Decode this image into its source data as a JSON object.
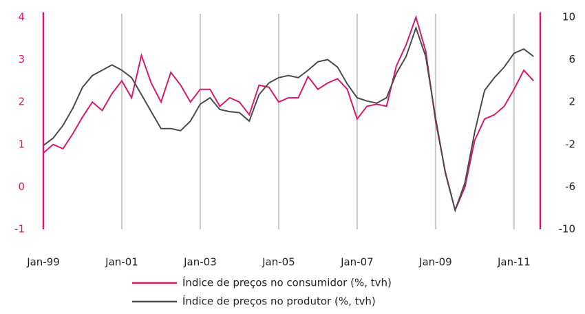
{
  "chart_data": {
    "type": "line",
    "x": [
      1999,
      1999.25,
      1999.5,
      1999.75,
      2000,
      2000.25,
      2000.5,
      2000.75,
      2001,
      2001.25,
      2001.5,
      2001.75,
      2002,
      2002.25,
      2002.5,
      2002.75,
      2003,
      2003.25,
      2003.5,
      2003.75,
      2004,
      2004.25,
      2004.5,
      2004.75,
      2005,
      2005.25,
      2005.5,
      2005.75,
      2006,
      2006.25,
      2006.5,
      2006.75,
      2007,
      2007.25,
      2007.5,
      2007.75,
      2008,
      2008.25,
      2008.5,
      2008.75,
      2009,
      2009.25,
      2009.5,
      2009.75,
      2010,
      2010.25,
      2010.5,
      2010.75,
      2011,
      2011.25,
      2011.5
    ],
    "xlim": [
      1999,
      2011.67
    ],
    "xticks": [
      {
        "value": 1999,
        "label": "Jan-99"
      },
      {
        "value": 2001,
        "label": "Jan-01"
      },
      {
        "value": 2003,
        "label": "Jan-03"
      },
      {
        "value": 2005,
        "label": "Jan-05"
      },
      {
        "value": 2007,
        "label": "Jan-07"
      },
      {
        "value": 2009,
        "label": "Jan-09"
      },
      {
        "value": 2011,
        "label": "Jan-11"
      }
    ],
    "ylim": [
      -1,
      4
    ],
    "yticks": [
      -1,
      0,
      1,
      2,
      3,
      4
    ],
    "y2lim": [
      -10,
      10
    ],
    "y2ticks": [
      -10,
      -6,
      -2,
      2,
      6,
      10
    ],
    "grid": true,
    "series": [
      {
        "name": "Índice de preços no consumidor (%, tvh)",
        "color": "#d6196e",
        "values": [
          0.8,
          1.0,
          0.9,
          1.25,
          1.65,
          2.0,
          1.8,
          2.2,
          2.5,
          2.1,
          3.1,
          2.45,
          2.0,
          2.7,
          2.4,
          2.0,
          2.3,
          2.3,
          1.9,
          2.1,
          2.0,
          1.7,
          2.4,
          2.35,
          2.0,
          2.1,
          2.1,
          2.6,
          2.3,
          2.45,
          2.55,
          2.3,
          1.6,
          1.9,
          1.95,
          1.9,
          2.85,
          3.35,
          4.0,
          3.2,
          1.55,
          0.35,
          -0.55,
          0.0,
          1.1,
          1.6,
          1.7,
          1.9,
          2.3,
          2.75,
          2.5
        ]
      },
      {
        "name": "Índice de preços no produtor (%, tvh)",
        "color": "#4a4a4a",
        "axis": "y2",
        "values": [
          -2.1,
          -1.4,
          -0.2,
          1.4,
          3.4,
          4.5,
          5.0,
          5.5,
          5.0,
          4.3,
          2.7,
          1.1,
          -0.5,
          -0.5,
          -0.7,
          0.2,
          1.8,
          2.4,
          1.3,
          1.1,
          1.0,
          0.2,
          2.7,
          3.8,
          4.3,
          4.5,
          4.3,
          5.0,
          5.8,
          6.0,
          5.3,
          3.7,
          2.4,
          2.1,
          1.9,
          2.4,
          4.7,
          6.3,
          9.0,
          6.3,
          0.5,
          -4.7,
          -8.2,
          -5.6,
          -0.8,
          3.1,
          4.3,
          5.3,
          6.6,
          7.0,
          6.3
        ]
      }
    ]
  }
}
